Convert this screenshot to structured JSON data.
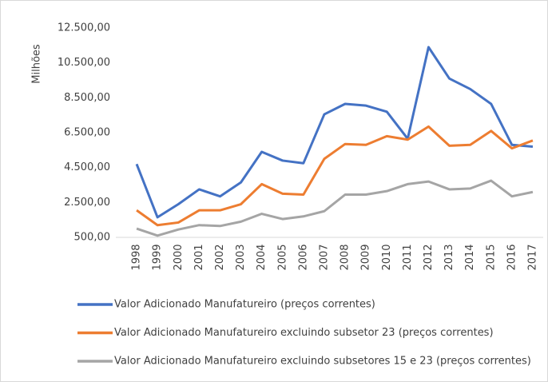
{
  "chart_data": {
    "type": "line",
    "y_label": "Milhões",
    "categories": [
      "1998",
      "1999",
      "2000",
      "2001",
      "2002",
      "2003",
      "2004",
      "2005",
      "2006",
      "2007",
      "2008",
      "2009",
      "2010",
      "2011",
      "2012",
      "2013",
      "2014",
      "2015",
      "2016",
      "2017"
    ],
    "series": [
      {
        "name": "Valor Adicionado Manufatureiro (preços correntes)",
        "color": "#4472c4",
        "values": [
          4700,
          1650,
          2400,
          3250,
          2850,
          3650,
          5400,
          4900,
          4750,
          7550,
          8150,
          8050,
          7700,
          6150,
          11400,
          9600,
          9000,
          8150,
          5800,
          5700
        ]
      },
      {
        "name": "Valor Adicionado Manufatureiro excluindo subsetor 23 (preços correntes)",
        "color": "#ed7d31",
        "values": [
          2050,
          1200,
          1350,
          2050,
          2050,
          2400,
          3550,
          3000,
          2950,
          5000,
          5850,
          5800,
          6300,
          6100,
          6850,
          5750,
          5800,
          6600,
          5600,
          6050
        ]
      },
      {
        "name": "Valor Adicionado Manufatureiro excluindo subsetores 15 e 23 (preços correntes)",
        "color": "#a5a5a5",
        "values": [
          1000,
          600,
          950,
          1200,
          1150,
          1400,
          1850,
          1550,
          1700,
          2000,
          2950,
          2950,
          3150,
          3550,
          3700,
          3250,
          3300,
          3750,
          2850,
          3100
        ]
      }
    ],
    "ylim": [
      500,
      12500
    ],
    "yticks": [
      {
        "value": 500,
        "label": "500,00"
      },
      {
        "value": 2500,
        "label": "2.500,00"
      },
      {
        "value": 4500,
        "label": "4.500,00"
      },
      {
        "value": 6500,
        "label": "6.500,00"
      },
      {
        "value": 8500,
        "label": "8.500,00"
      },
      {
        "value": 10500,
        "label": "10.500,00"
      },
      {
        "value": 12500,
        "label": "12.500,00"
      }
    ],
    "grid": false
  }
}
